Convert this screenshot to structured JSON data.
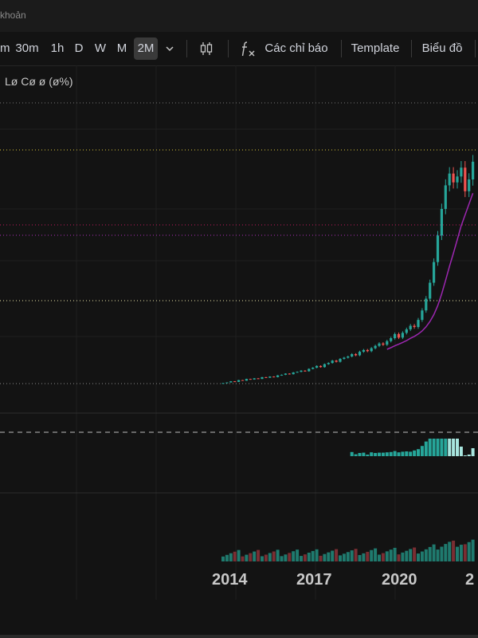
{
  "topbar": {
    "account_text": "khoản"
  },
  "toolbar": {
    "intervals": [
      "m",
      "30m",
      "1h",
      "D",
      "W",
      "M",
      "2M"
    ],
    "active_interval": "2M",
    "indicators_label": "Các chỉ báo",
    "template_label": "Template",
    "chart_label": "Biểu đồ"
  },
  "legend": {
    "text": "Lø Cø ø (ø%)"
  },
  "colors": {
    "up": "#26a69a",
    "down": "#ef5350",
    "ma": "#9c27b0",
    "volume_up": "#1f7a6e",
    "volume_down": "#7a2e33",
    "grid": "#1f1f1f"
  },
  "chart_data": {
    "type": "candlestick",
    "x_ticks": [
      "2014",
      "2017",
      "2020",
      "2"
    ],
    "series": [
      {
        "type": "candlestick",
        "values": [
          0.5,
          0.6,
          0.8,
          0.7,
          1.0,
          0.9,
          1.2,
          1.1,
          1.3,
          1.2,
          1.5,
          1.4,
          1.6,
          1.5,
          1.8,
          1.9,
          2.1,
          2.0,
          2.3,
          2.4,
          2.6,
          2.5,
          2.9,
          3.1,
          3.4,
          3.2,
          3.7,
          3.9,
          4.3,
          4.1,
          4.6,
          4.8,
          5.0,
          5.4,
          5.2,
          5.8,
          6.1,
          5.9,
          6.4,
          6.8,
          7.2,
          7.0,
          7.6,
          8.1,
          8.8,
          8.2,
          9.0,
          9.6,
          10.2,
          10.0,
          11.2,
          12.8,
          14.8,
          17.5,
          21.0,
          25.5,
          30.0,
          34.0,
          36.0,
          34.5,
          35.5,
          37.0,
          33.0,
          35.0,
          38.0
        ]
      },
      {
        "type": "line",
        "role": "moving-average"
      },
      {
        "type": "histogram",
        "role": "oscillator"
      },
      {
        "type": "volume"
      }
    ]
  }
}
